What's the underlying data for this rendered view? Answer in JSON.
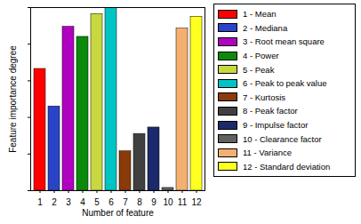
{
  "chart_data": {
    "type": "bar",
    "x_label": "Number of feature",
    "y_label": "Feature importance degree",
    "categories": [
      "1",
      "2",
      "3",
      "4",
      "5",
      "6",
      "7",
      "8",
      "9",
      "10",
      "11",
      "12"
    ],
    "values": [
      0.665,
      0.46,
      0.895,
      0.84,
      0.965,
      1.0,
      0.215,
      0.31,
      0.345,
      0.015,
      0.885,
      0.95
    ],
    "colors": [
      "#ff0000",
      "#2a44c8",
      "#b000c0",
      "#0a8a0a",
      "#c8d840",
      "#00c4c4",
      "#8b3a0a",
      "#404040",
      "#1a2a6a",
      "#606060",
      "#f4b070",
      "#ffff20"
    ],
    "legend_labels": [
      "1 - Mean",
      "2 - Mediana",
      "3 - Root mean square",
      "4 - Power",
      "5 - Peak",
      "6 - Peak to peak value",
      "7 - Kurtosis",
      "8 - Peak factor",
      "9 - Impulse factor",
      "10 - Clearance factor",
      "11 - Variance",
      "12 - Standard deviation"
    ],
    "ylim": [
      0,
      1
    ],
    "yticks": [
      0,
      0.2,
      0.4,
      0.6,
      0.8,
      1
    ],
    "tick_labels": "x",
    "grid": false,
    "legend": "right"
  }
}
